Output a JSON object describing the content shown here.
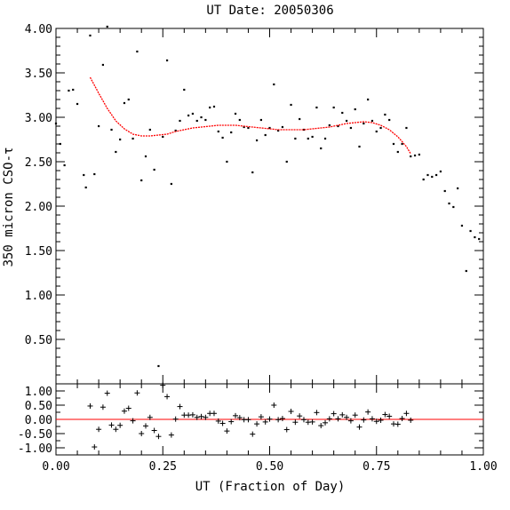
{
  "chart_data": [
    {
      "type": "scatter",
      "panel": "main",
      "title": "UT Date: 20050306",
      "ylabel": "350 micron CSO-τ",
      "xlim": [
        0,
        1
      ],
      "ylim": [
        0,
        4
      ],
      "yticks": [
        "0.50",
        "1.00",
        "1.50",
        "2.00",
        "2.50",
        "3.00",
        "3.50",
        "4.00"
      ],
      "grid": false,
      "points": {
        "x": [
          0.0,
          0.01,
          0.02,
          0.03,
          0.04,
          0.05,
          0.065,
          0.07,
          0.08,
          0.09,
          0.1,
          0.11,
          0.12,
          0.13,
          0.14,
          0.15,
          0.16,
          0.17,
          0.18,
          0.19,
          0.2,
          0.21,
          0.22,
          0.23,
          0.24,
          0.25,
          0.26,
          0.27,
          0.28,
          0.29,
          0.3,
          0.31,
          0.32,
          0.33,
          0.34,
          0.35,
          0.36,
          0.37,
          0.38,
          0.39,
          0.4,
          0.41,
          0.42,
          0.43,
          0.44,
          0.45,
          0.46,
          0.47,
          0.48,
          0.49,
          0.5,
          0.51,
          0.52,
          0.53,
          0.54,
          0.55,
          0.56,
          0.57,
          0.58,
          0.59,
          0.6,
          0.61,
          0.62,
          0.63,
          0.64,
          0.65,
          0.66,
          0.67,
          0.68,
          0.69,
          0.7,
          0.71,
          0.72,
          0.73,
          0.74,
          0.75,
          0.76,
          0.77,
          0.78,
          0.79,
          0.8,
          0.81,
          0.82,
          0.83,
          0.84,
          0.85,
          0.86,
          0.87,
          0.88,
          0.89,
          0.9,
          0.91,
          0.92,
          0.93,
          0.94,
          0.95,
          0.96,
          0.97,
          0.98,
          0.99
        ],
        "y": [
          2.93,
          2.7,
          2.46,
          3.3,
          3.31,
          3.15,
          2.35,
          2.21,
          3.92,
          2.36,
          2.9,
          3.59,
          4.02,
          2.86,
          2.61,
          2.75,
          3.16,
          3.2,
          2.76,
          3.74,
          2.29,
          2.56,
          2.86,
          2.41,
          0.2,
          2.78,
          3.64,
          2.25,
          2.85,
          2.96,
          3.31,
          3.02,
          3.04,
          2.96,
          3.0,
          2.97,
          3.11,
          3.12,
          2.84,
          2.77,
          2.5,
          2.83,
          3.04,
          2.97,
          2.89,
          2.88,
          2.38,
          2.74,
          2.97,
          2.8,
          2.88,
          3.37,
          2.85,
          2.89,
          2.5,
          3.14,
          2.76,
          2.98,
          2.86,
          2.76,
          2.78,
          3.11,
          2.65,
          2.76,
          2.91,
          3.11,
          2.9,
          3.05,
          2.96,
          2.88,
          3.09,
          2.67,
          2.93,
          3.2,
          2.96,
          2.84,
          2.88,
          3.03,
          2.97,
          2.7,
          2.61,
          2.7,
          2.88,
          2.56,
          2.57,
          2.58,
          2.3,
          2.35,
          2.33,
          2.35,
          2.39,
          2.17,
          2.03,
          1.99,
          2.2,
          1.78,
          1.27,
          1.72,
          1.65,
          1.63
        ]
      },
      "fit": {
        "x": [
          0.08,
          0.1,
          0.12,
          0.14,
          0.16,
          0.18,
          0.2,
          0.22,
          0.24,
          0.26,
          0.28,
          0.3,
          0.32,
          0.34,
          0.36,
          0.38,
          0.4,
          0.42,
          0.44,
          0.46,
          0.48,
          0.5,
          0.52,
          0.54,
          0.56,
          0.58,
          0.6,
          0.62,
          0.64,
          0.66,
          0.68,
          0.7,
          0.72,
          0.74,
          0.76,
          0.78,
          0.8,
          0.82,
          0.83
        ],
        "y": [
          3.45,
          3.27,
          3.1,
          2.96,
          2.87,
          2.81,
          2.79,
          2.79,
          2.8,
          2.81,
          2.84,
          2.86,
          2.88,
          2.89,
          2.9,
          2.91,
          2.91,
          2.91,
          2.9,
          2.89,
          2.88,
          2.87,
          2.86,
          2.86,
          2.86,
          2.86,
          2.87,
          2.88,
          2.89,
          2.91,
          2.93,
          2.94,
          2.95,
          2.94,
          2.91,
          2.86,
          2.78,
          2.67,
          2.59
        ]
      },
      "colors": {
        "points": "#000000",
        "fit": "#ff0000"
      }
    },
    {
      "type": "scatter",
      "panel": "residuals",
      "xlabel": "UT (Fraction of Day)",
      "xlim": [
        0,
        1
      ],
      "ylim": [
        -1.25,
        1.25
      ],
      "xticks": [
        "0.00",
        "0.25",
        "0.50",
        "0.75",
        "1.00"
      ],
      "yticks": [
        "-1.00",
        "-0.50",
        "0.00",
        "0.50",
        "1.00"
      ],
      "zero_line_color": "#ff0000",
      "points": {
        "x": [
          0.08,
          0.09,
          0.1,
          0.11,
          0.12,
          0.13,
          0.14,
          0.15,
          0.16,
          0.17,
          0.18,
          0.19,
          0.2,
          0.21,
          0.22,
          0.23,
          0.24,
          0.25,
          0.26,
          0.27,
          0.28,
          0.29,
          0.3,
          0.31,
          0.32,
          0.33,
          0.34,
          0.35,
          0.36,
          0.37,
          0.38,
          0.39,
          0.4,
          0.41,
          0.42,
          0.43,
          0.44,
          0.45,
          0.46,
          0.47,
          0.48,
          0.49,
          0.5,
          0.51,
          0.52,
          0.53,
          0.54,
          0.55,
          0.56,
          0.57,
          0.58,
          0.59,
          0.6,
          0.61,
          0.62,
          0.63,
          0.64,
          0.65,
          0.66,
          0.67,
          0.68,
          0.69,
          0.7,
          0.71,
          0.72,
          0.73,
          0.74,
          0.75,
          0.76,
          0.77,
          0.78,
          0.79,
          0.8,
          0.81,
          0.82,
          0.83
        ],
        "y": [
          0.47,
          -0.97,
          -0.35,
          0.43,
          0.92,
          -0.2,
          -0.35,
          -0.21,
          0.29,
          0.39,
          -0.05,
          0.93,
          -0.5,
          -0.23,
          0.07,
          -0.39,
          -0.6,
          1.2,
          0.8,
          -0.55,
          0.01,
          0.45,
          0.15,
          0.15,
          0.16,
          0.07,
          0.1,
          0.07,
          0.21,
          0.21,
          -0.06,
          -0.14,
          -0.41,
          -0.08,
          0.13,
          0.06,
          -0.01,
          -0.01,
          -0.52,
          -0.16,
          0.09,
          -0.09,
          0.01,
          0.5,
          -0.01,
          0.03,
          -0.36,
          0.28,
          -0.1,
          0.12,
          -0.01,
          -0.1,
          -0.09,
          0.24,
          -0.22,
          -0.12,
          0.02,
          0.2,
          0.02,
          0.16,
          0.07,
          -0.05,
          0.15,
          -0.27,
          -0.02,
          0.26,
          0.02,
          -0.07,
          -0.03,
          0.17,
          0.11,
          -0.16,
          -0.17,
          0.03,
          0.21,
          -0.03
        ]
      },
      "colors": {
        "points": "#000000"
      }
    }
  ]
}
